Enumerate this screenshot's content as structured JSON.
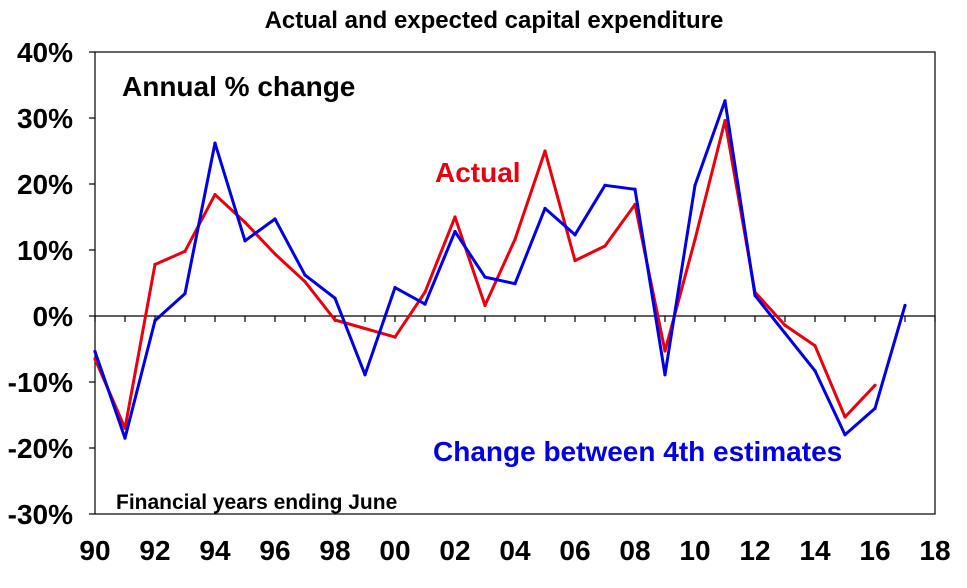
{
  "chart_data": {
    "type": "line",
    "title": "Actual and expected capital expenditure",
    "ylabel": "",
    "xlabel": "",
    "ylim": [
      -30,
      40
    ],
    "xlim": [
      90,
      18
    ],
    "y_ticks": [
      "40%",
      "30%",
      "20%",
      "10%",
      "0%",
      "-10%",
      "-20%",
      "-30%"
    ],
    "y_tick_values": [
      40,
      30,
      20,
      10,
      0,
      -10,
      -20,
      -30
    ],
    "x_ticks": [
      "90",
      "92",
      "94",
      "96",
      "98",
      "00",
      "02",
      "04",
      "06",
      "08",
      "10",
      "12",
      "14",
      "16",
      "18"
    ],
    "annotations": {
      "subtitle": "Annual % change",
      "actual_label": "Actual",
      "estimates_label": "Change between 4th estimates",
      "footnote": "Financial years ending June"
    },
    "colors": {
      "actual": "#e8000f",
      "estimates": "#0000e0",
      "axis": "#000000"
    },
    "series": [
      {
        "name": "Actual",
        "color": "#e8000f",
        "x": [
          1990,
          1991,
          1992,
          1993,
          1994,
          1995,
          1996,
          1997,
          1998,
          1999,
          2000,
          2001,
          2002,
          2003,
          2004,
          2005,
          2006,
          2007,
          2008,
          2009,
          2010,
          2011,
          2012,
          2013,
          2014,
          2015,
          2016
        ],
        "values": [
          -6.5,
          -17,
          7.8,
          9.8,
          18.4,
          14.2,
          9.4,
          5.2,
          -0.6,
          -1.9,
          -3.2,
          3.6,
          15.0,
          1.6,
          11.6,
          25.0,
          8.4,
          10.6,
          16.9,
          -5.3,
          11.6,
          29.6,
          3.6,
          -1.4,
          -4.5,
          -15.3,
          -10.5
        ]
      },
      {
        "name": "Change between 4th estimates",
        "color": "#0000e0",
        "x": [
          1990,
          1991,
          1992,
          1993,
          1994,
          1995,
          1996,
          1997,
          1998,
          1999,
          2000,
          2001,
          2002,
          2003,
          2004,
          2005,
          2006,
          2007,
          2008,
          2009,
          2010,
          2011,
          2012,
          2013,
          2014,
          2015,
          2016,
          2017
        ],
        "values": [
          -5.4,
          -18.5,
          -0.7,
          3.4,
          26.2,
          11.4,
          14.7,
          6.2,
          2.7,
          -8.9,
          4.3,
          1.8,
          12.8,
          5.9,
          4.9,
          16.3,
          12.3,
          19.8,
          19.2,
          -8.9,
          19.8,
          32.6,
          3.1,
          -2.6,
          -8.3,
          -18.0,
          -14.0,
          1.6
        ]
      }
    ]
  }
}
